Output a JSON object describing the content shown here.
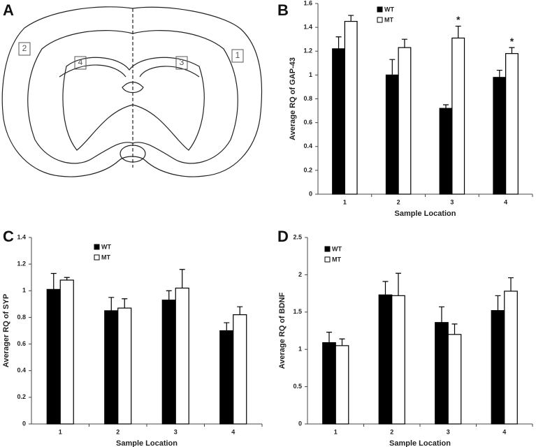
{
  "diagram": {
    "panel_label": "A",
    "regions": [
      "2",
      "4",
      "3",
      "1"
    ]
  },
  "chart_data": [
    {
      "type": "bar",
      "panel_label": "B",
      "y_label": "Average RQ of GAP-43",
      "x_label": "Sample Location",
      "categories": [
        "1",
        "2",
        "3",
        "4"
      ],
      "series": [
        {
          "name": "WT",
          "color": "#000000",
          "values": [
            1.22,
            1.0,
            0.72,
            0.98
          ],
          "errors": [
            0.1,
            0.13,
            0.03,
            0.06
          ]
        },
        {
          "name": "MT",
          "color": "#ffffff",
          "values": [
            1.45,
            1.23,
            1.31,
            1.18
          ],
          "errors": [
            0.05,
            0.07,
            0.1,
            0.05
          ]
        }
      ],
      "significance": [
        null,
        null,
        "*",
        "*"
      ],
      "ylim": [
        0,
        1.6
      ],
      "yticks": [
        0,
        0.2,
        0.4,
        0.6,
        0.8,
        1,
        1.2,
        1.4,
        1.6
      ]
    },
    {
      "type": "bar",
      "panel_label": "C",
      "y_label": "Averager RQ of SYP",
      "x_label": "Sample Location",
      "categories": [
        "1",
        "2",
        "3",
        "4"
      ],
      "series": [
        {
          "name": "WT",
          "color": "#000000",
          "values": [
            1.01,
            0.85,
            0.93,
            0.7
          ],
          "errors": [
            0.12,
            0.1,
            0.07,
            0.06
          ]
        },
        {
          "name": "MT",
          "color": "#ffffff",
          "values": [
            1.08,
            0.87,
            1.02,
            0.82
          ],
          "errors": [
            0.02,
            0.07,
            0.14,
            0.06
          ]
        }
      ],
      "ylim": [
        0,
        1.4
      ],
      "yticks": [
        0,
        0.2,
        0.4,
        0.6,
        0.8,
        1,
        1.2,
        1.4
      ]
    },
    {
      "type": "bar",
      "panel_label": "D",
      "y_label": "Average RQ of BDNF",
      "x_label": "Sample Location",
      "categories": [
        "1",
        "2",
        "3",
        "4"
      ],
      "series": [
        {
          "name": "WT",
          "color": "#000000",
          "values": [
            1.09,
            1.73,
            1.36,
            1.52
          ],
          "errors": [
            0.14,
            0.18,
            0.21,
            0.2
          ]
        },
        {
          "name": "MT",
          "color": "#ffffff",
          "values": [
            1.05,
            1.72,
            1.2,
            1.78
          ],
          "errors": [
            0.09,
            0.3,
            0.14,
            0.18
          ]
        }
      ],
      "ylim": [
        0,
        2.5
      ],
      "yticks": [
        0,
        0.5,
        1,
        1.5,
        2,
        2.5
      ]
    }
  ]
}
